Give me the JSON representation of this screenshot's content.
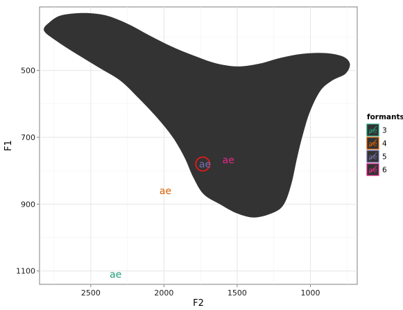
{
  "chart_data": {
    "type": "scatter",
    "title": "",
    "xlabel": "F2",
    "ylabel": "F1",
    "x_reversed": true,
    "y_reversed": true,
    "xlim": [
      2850,
      680
    ],
    "ylim": [
      310,
      1140
    ],
    "x_ticks": [
      2500,
      2000,
      1500,
      1000
    ],
    "y_ticks": [
      500,
      700,
      900,
      1100
    ],
    "grid": true,
    "legend": {
      "title": "formants",
      "position": "right",
      "entries": [
        {
          "label": "3",
          "color": "#1b9e77"
        },
        {
          "label": "4",
          "color": "#d95f02"
        },
        {
          "label": "5",
          "color": "#7570b3"
        },
        {
          "label": "6",
          "color": "#e7298a"
        }
      ]
    },
    "region": {
      "fill": "#333333",
      "outline": [
        [
          2780,
          355
        ],
        [
          2700,
          335
        ],
        [
          2550,
          328
        ],
        [
          2400,
          335
        ],
        [
          2250,
          360
        ],
        [
          2100,
          395
        ],
        [
          1950,
          428
        ],
        [
          1800,
          455
        ],
        [
          1650,
          478
        ],
        [
          1500,
          488
        ],
        [
          1350,
          480
        ],
        [
          1200,
          462
        ],
        [
          1050,
          450
        ],
        [
          900,
          448
        ],
        [
          780,
          458
        ],
        [
          730,
          480
        ],
        [
          760,
          510
        ],
        [
          850,
          530
        ],
        [
          930,
          560
        ],
        [
          1000,
          620
        ],
        [
          1050,
          690
        ],
        [
          1090,
          760
        ],
        [
          1130,
          840
        ],
        [
          1180,
          900
        ],
        [
          1250,
          925
        ],
        [
          1380,
          940
        ],
        [
          1500,
          928
        ],
        [
          1620,
          900
        ],
        [
          1730,
          870
        ],
        [
          1800,
          820
        ],
        [
          1860,
          760
        ],
        [
          1940,
          700
        ],
        [
          2050,
          640
        ],
        [
          2180,
          580
        ],
        [
          2300,
          530
        ],
        [
          2450,
          490
        ],
        [
          2600,
          450
        ],
        [
          2740,
          410
        ],
        [
          2820,
          380
        ]
      ]
    },
    "points": [
      {
        "label": "ae",
        "formant": "3",
        "x": 2330,
        "y": 1110,
        "color": "#1b9e77"
      },
      {
        "label": "ae",
        "formant": "4",
        "x": 1990,
        "y": 860,
        "color": "#d95f02"
      },
      {
        "label": "ae",
        "formant": "5",
        "x": 1720,
        "y": 780,
        "color": "#7570b3"
      },
      {
        "label": "ae",
        "formant": "6",
        "x": 1560,
        "y": 768,
        "color": "#e7298a"
      }
    ],
    "highlight": {
      "x": 1735,
      "y": 780,
      "color": "#e41a1c"
    }
  }
}
